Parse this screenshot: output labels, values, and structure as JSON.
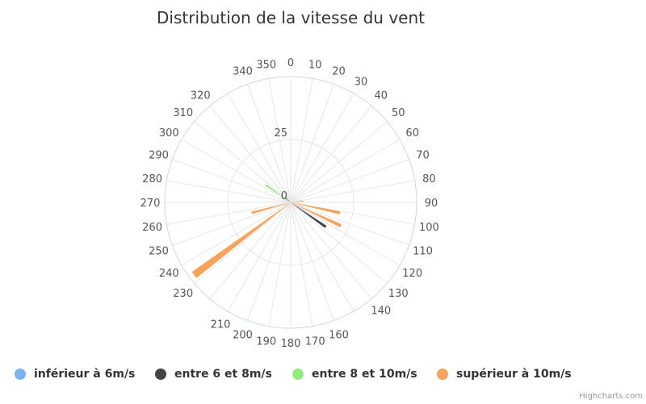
{
  "chart_data": {
    "type": "polar-bar",
    "title": "Distribution de la vitesse du vent",
    "angle_ticks": [
      "0",
      "10",
      "20",
      "30",
      "40",
      "50",
      "60",
      "70",
      "80",
      "90",
      "100",
      "110",
      "120",
      "130",
      "140",
      "160",
      "170",
      "180",
      "190",
      "200",
      "210",
      "230",
      "240",
      "250",
      "260",
      "270",
      "280",
      "290",
      "300",
      "310",
      "320",
      "340",
      "350"
    ],
    "radial_ticks": [
      "0",
      "25"
    ],
    "rmax": 50,
    "series": [
      {
        "name": "inférieur à 6m/s",
        "color": "#7cb5ec",
        "points": []
      },
      {
        "name": "entre 6 et 8m/s",
        "color": "#434348",
        "points": [
          {
            "direction": 125,
            "value": 17
          },
          {
            "direction": 305,
            "value": 3
          },
          {
            "direction": 313,
            "value": 3
          }
        ]
      },
      {
        "name": "entre 8 et 10m/s",
        "color": "#90ed7d",
        "points": [
          {
            "direction": 305,
            "value": 12
          }
        ]
      },
      {
        "name": "supérieur à 10m/s",
        "color": "#f7a35c",
        "points": [
          {
            "direction": 233,
            "value": 48
          },
          {
            "direction": 255,
            "value": 16
          },
          {
            "direction": 115,
            "value": 22
          },
          {
            "direction": 102,
            "value": 20
          },
          {
            "direction": 84,
            "value": 5
          },
          {
            "direction": 135,
            "value": 2
          }
        ]
      }
    ],
    "legend_position": "bottom"
  },
  "credits": "Highcharts.com"
}
